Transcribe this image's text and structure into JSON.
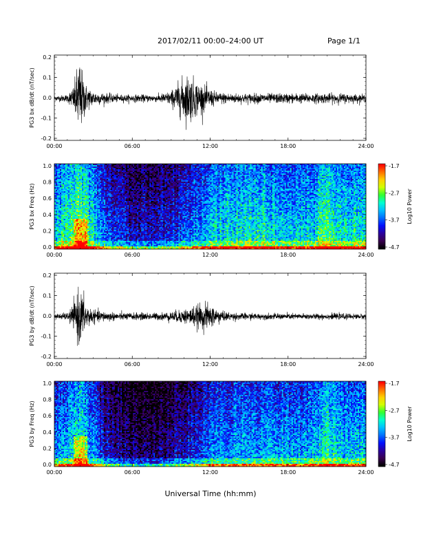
{
  "header": {
    "title": "2017/02/11   00:00–24:00 UT",
    "page": "Page 1/1"
  },
  "footer": {
    "xlabel": "Universal Time (hh:mm)"
  },
  "colors": {
    "trace": "#000000",
    "colormap": [
      "#000000",
      "#3a0050",
      "#2a00a0",
      "#0010ff",
      "#0070ff",
      "#00c0ff",
      "#00ffd0",
      "#30ff30",
      "#d0ff00",
      "#ffd000",
      "#ff7000",
      "#ff0000"
    ]
  },
  "chart_data": [
    {
      "type": "line",
      "ylabel": "PG3 bx dB/dt (nT/sec)",
      "x_ticks": [
        "00:00",
        "06:00",
        "12:00",
        "18:00",
        "24:00"
      ],
      "y_ticks": [
        "0.2",
        "0.1",
        "0.0",
        "-0.1",
        "-0.2"
      ],
      "ylim": [
        -0.2,
        0.2
      ],
      "xlim_hours": [
        0,
        24
      ],
      "series": [
        {
          "hours": [
            0,
            1,
            1.5,
            1.9,
            2.1,
            2.5,
            3,
            4,
            5,
            6,
            8,
            9,
            9.8,
            10.3,
            11,
            11.6,
            12.5,
            14,
            16,
            18,
            20,
            22,
            24
          ],
          "amplitude": [
            0.01,
            0.015,
            0.05,
            0.17,
            0.12,
            0.05,
            0.03,
            0.02,
            0.015,
            0.015,
            0.015,
            0.03,
            0.08,
            0.1,
            0.07,
            0.05,
            0.025,
            0.02,
            0.02,
            0.02,
            0.02,
            0.02,
            0.015
          ]
        }
      ]
    },
    {
      "type": "heatmap",
      "ylabel": "PG3 bx Freq (Hz)",
      "x_ticks": [
        "00:00",
        "06:00",
        "12:00",
        "18:00",
        "24:00"
      ],
      "y_ticks": [
        "1.0",
        "0.8",
        "0.6",
        "0.4",
        "0.2",
        "0.0"
      ],
      "ylim": [
        0,
        1.0
      ],
      "colorbar": {
        "label": "Log10 Power",
        "ticks": [
          "-1.7",
          "-2.7",
          "-3.7",
          "-4.7"
        ],
        "range": [
          -4.7,
          -1.7
        ]
      },
      "activity_hours": [
        0,
        2,
        4,
        6,
        8,
        10,
        12,
        14,
        16,
        18,
        20,
        21,
        22,
        24
      ],
      "activity_level": [
        0.5,
        0.7,
        0.35,
        0.25,
        0.25,
        0.35,
        0.5,
        0.55,
        0.55,
        0.5,
        0.5,
        0.7,
        0.55,
        0.55
      ]
    },
    {
      "type": "line",
      "ylabel": "PG3 by dB/dt (nT/sec)",
      "x_ticks": [
        "00:00",
        "06:00",
        "12:00",
        "18:00",
        "24:00"
      ],
      "y_ticks": [
        "0.2",
        "0.1",
        "0.0",
        "-0.1",
        "-0.2"
      ],
      "ylim": [
        -0.2,
        0.2
      ],
      "xlim_hours": [
        0,
        24
      ],
      "series": [
        {
          "hours": [
            0,
            1,
            1.5,
            1.9,
            2.1,
            2.5,
            3,
            4,
            5,
            6,
            8,
            9,
            10,
            11,
            11.6,
            12.3,
            13,
            14,
            16,
            18,
            20,
            22,
            24
          ],
          "amplitude": [
            0.01,
            0.015,
            0.05,
            0.12,
            0.1,
            0.05,
            0.025,
            0.02,
            0.015,
            0.015,
            0.015,
            0.02,
            0.03,
            0.045,
            0.055,
            0.04,
            0.02,
            0.015,
            0.012,
            0.012,
            0.012,
            0.012,
            0.01
          ]
        }
      ]
    },
    {
      "type": "heatmap",
      "ylabel": "PG3 by Freq (Hz)",
      "x_ticks": [
        "00:00",
        "06:00",
        "12:00",
        "18:00",
        "24:00"
      ],
      "y_ticks": [
        "1.0",
        "0.8",
        "0.6",
        "0.4",
        "0.2",
        "0.0"
      ],
      "ylim": [
        0,
        1.0
      ],
      "colorbar": {
        "label": "Log10 Power",
        "ticks": [
          "-1.7",
          "-2.7",
          "-3.7",
          "-4.7"
        ],
        "range": [
          -4.7,
          -1.7
        ]
      },
      "activity_hours": [
        0,
        2,
        4,
        6,
        8,
        10,
        12,
        14,
        16,
        18,
        20,
        21,
        22,
        24
      ],
      "activity_level": [
        0.4,
        0.6,
        0.25,
        0.15,
        0.15,
        0.25,
        0.4,
        0.45,
        0.45,
        0.45,
        0.45,
        0.6,
        0.5,
        0.5
      ]
    }
  ]
}
